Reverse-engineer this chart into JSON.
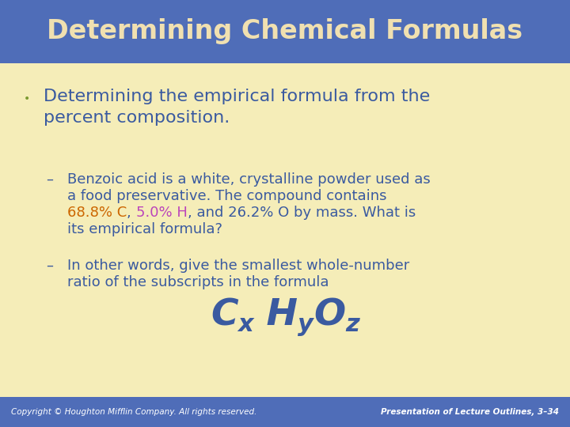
{
  "title": "Determining Chemical Formulas",
  "title_color": "#F0E0B0",
  "title_bg_color": "#4F6DB8",
  "body_bg_color": "#F5EDB8",
  "footer_bg_color": "#4F6DB8",
  "footer_left": "Copyright © Houghton Mifflin Company. All rights reserved.",
  "footer_right": "Presentation of Lecture Outlines, 3–34",
  "footer_color": "#FFFFFF",
  "bullet_color": "#3A5AA0",
  "sub_color": "#3A5AA0",
  "highlight_c_color": "#CC6600",
  "highlight_h_color": "#BB44BB",
  "bullet_dot_color": "#7A9A30",
  "sub1_line1": "Benzoic acid is a white, crystalline powder used as",
  "sub1_line2": "a food preservative. The compound contains",
  "sub1_line3_pre": "68.8% C",
  "sub1_line3_sep": ", ",
  "sub1_line3_mid": "5.0% H",
  "sub1_line3_post": ", and 26.2% O by mass. What is",
  "sub1_line4": "its empirical formula?",
  "sub2_line1": "In other words, give the smallest whole-number",
  "sub2_line2": "ratio of the subscripts in the formula",
  "title_fontsize": 24,
  "bullet_fontsize": 16,
  "sub_fontsize": 13,
  "formula_fontsize_main": 34,
  "formula_fontsize_sub": 22,
  "footer_fontsize": 7.5
}
